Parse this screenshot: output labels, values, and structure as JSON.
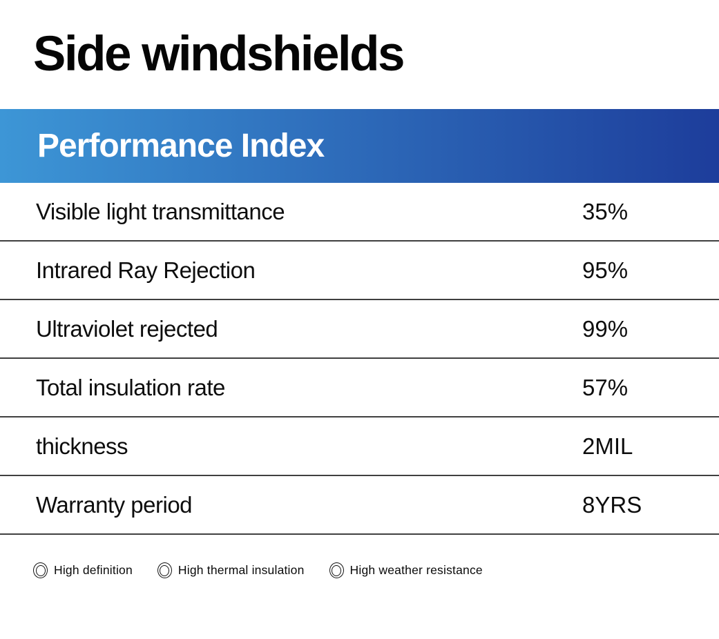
{
  "page": {
    "title": "Side windshields"
  },
  "table": {
    "header": "Performance Index",
    "rows": [
      {
        "label": "Visible light transmittance",
        "value": "35%"
      },
      {
        "label": "Intrared Ray Rejection",
        "value": "95%"
      },
      {
        "label": "Ultraviolet rejected",
        "value": "99%"
      },
      {
        "label": "Total insulation rate",
        "value": "57%"
      },
      {
        "label": "thickness",
        "value": "2MIL"
      },
      {
        "label": "Warranty period",
        "value": "8YRS"
      }
    ]
  },
  "features": [
    {
      "icon": "double-circle-icon",
      "label": "High definition"
    },
    {
      "icon": "double-circle-icon",
      "label": "High thermal insulation"
    },
    {
      "icon": "double-circle-icon",
      "label": "High weather resistance"
    }
  ],
  "colors": {
    "header_gradient_from": "#3d96d6",
    "header_gradient_to": "#1d3d9b",
    "divider": "#3f3f3f",
    "text": "#0d0d0d"
  }
}
